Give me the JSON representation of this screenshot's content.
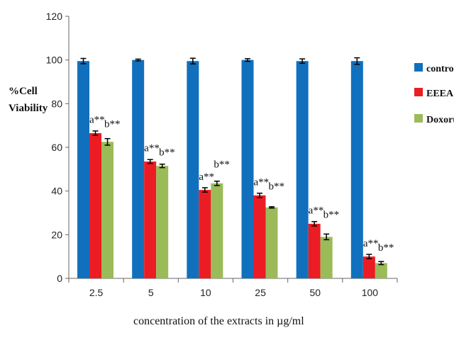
{
  "chart_data": {
    "type": "bar",
    "ylabel": "%Cell Viability",
    "ylabel_lines": [
      "%Cell",
      "Viability"
    ],
    "xlabel": "concentration of the extracts in   µg/ml",
    "categories": [
      "2.5",
      "5",
      "10",
      "25",
      "50",
      "100"
    ],
    "ylim": [
      0,
      120
    ],
    "yticks": [
      "0",
      "20",
      "40",
      "60",
      "80",
      "100",
      "120"
    ],
    "grid": false,
    "legend": "right",
    "series": [
      {
        "name": "control",
        "color": "#1170BD",
        "values": [
          99.5,
          100,
          99.5,
          100,
          99.5,
          99.5
        ],
        "errors": [
          1.2,
          0.4,
          1.3,
          0.6,
          1.0,
          1.5
        ]
      },
      {
        "name": "EEEA",
        "color": "#EC1C24",
        "values": [
          66.5,
          53.5,
          40.5,
          38,
          25,
          10
        ],
        "errors": [
          1,
          0.9,
          1,
          1,
          1,
          1
        ]
      },
      {
        "name": "Doxorubicin",
        "color": "#9BBB59",
        "values": [
          62.5,
          51.5,
          43.5,
          32.5,
          19,
          7
        ],
        "errors": [
          1.5,
          0.8,
          1,
          0.3,
          1.3,
          0.7
        ]
      }
    ],
    "annotations": [
      {
        "a": "a**",
        "b": "b**"
      },
      {
        "a": "a**",
        "b": "b**"
      },
      {
        "a": "a**",
        "b": "b**"
      },
      {
        "a": "a**",
        "b": "b**"
      },
      {
        "a": "a**",
        "b": "b**"
      },
      {
        "a": "a**",
        "b": "b**"
      }
    ]
  }
}
